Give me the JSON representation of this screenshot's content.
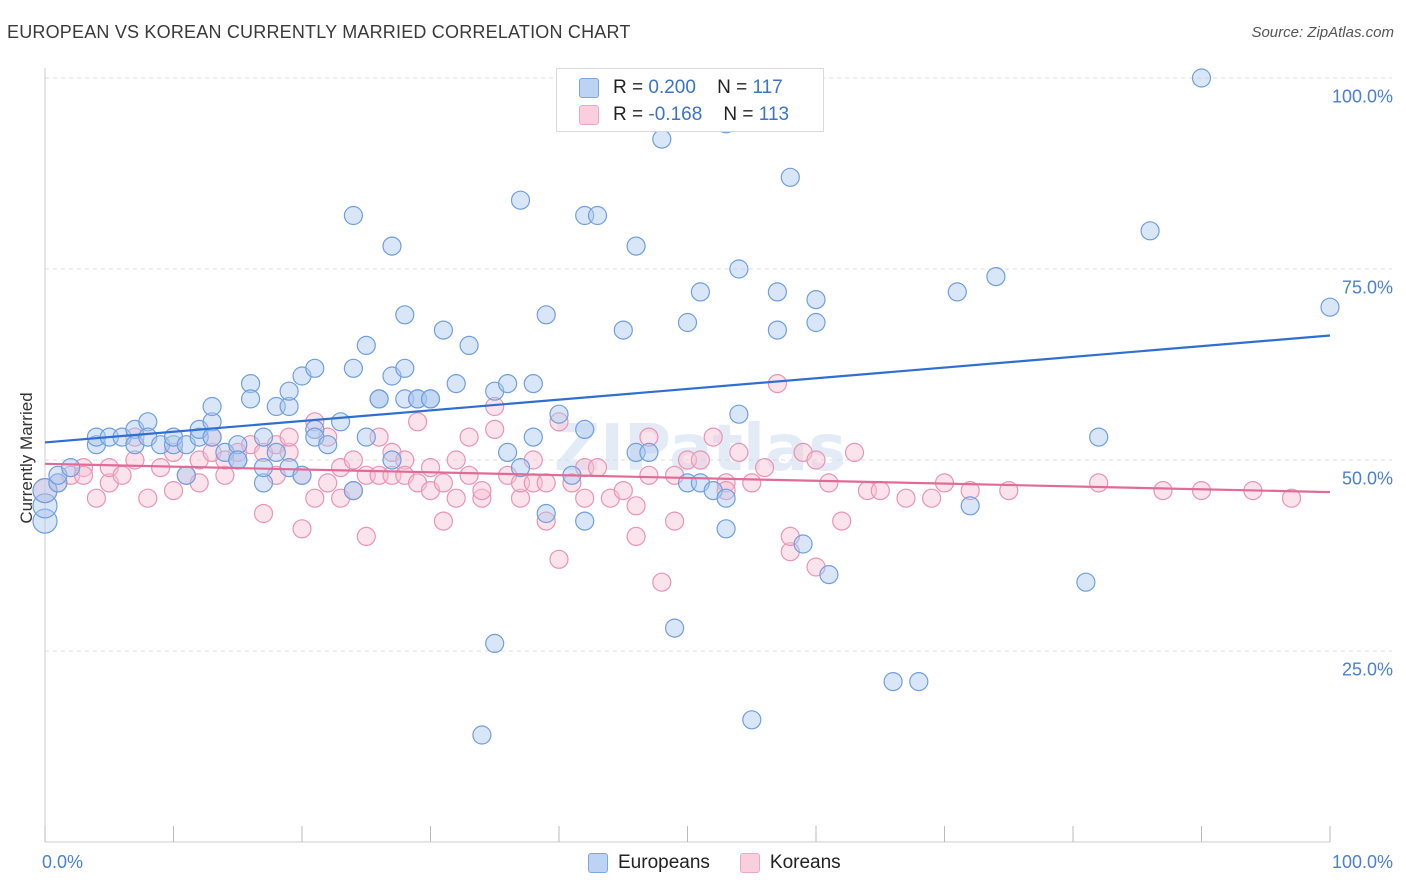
{
  "header": {
    "title": "EUROPEAN VS KOREAN CURRENTLY MARRIED CORRELATION CHART",
    "source": "Source: ZipAtlas.com"
  },
  "legend": {
    "europeans": {
      "r_label": "R =",
      "r_value": "0.200",
      "n_label": "N =",
      "n_value": "117"
    },
    "koreans": {
      "r_label": "R =",
      "r_value": "-0.168",
      "n_label": "N =",
      "n_value": "113"
    }
  },
  "watermark": "ZIPatlas",
  "chart_data": {
    "type": "scatter",
    "title": "EUROPEAN VS KOREAN CURRENTLY MARRIED CORRELATION CHART",
    "xlabel": "",
    "ylabel": "Currently Married",
    "xlim": [
      0,
      100
    ],
    "ylim": [
      0,
      100
    ],
    "x_tick_labels": [
      "0.0%",
      "100.0%"
    ],
    "y_tick_labels": [
      "100.0%",
      "75.0%",
      "50.0%",
      "25.0%"
    ],
    "y_tick_values": [
      100,
      75,
      50,
      25
    ],
    "grid": true,
    "legend_placement": "top-center",
    "colors": {
      "europeans": "#7aa7e6",
      "europeans_line": "#2f6fd0",
      "koreans": "#f2a7c0",
      "koreans_line": "#e06b96"
    },
    "series": [
      {
        "name": "Europeans",
        "trend": [
          [
            0,
            52.3
          ],
          [
            100,
            66.3
          ]
        ],
        "points": [
          [
            0,
            42
          ],
          [
            0,
            44
          ],
          [
            0,
            46
          ],
          [
            1,
            47
          ],
          [
            1,
            48
          ],
          [
            2,
            49
          ],
          [
            4,
            52
          ],
          [
            4,
            53
          ],
          [
            5,
            53
          ],
          [
            6,
            53
          ],
          [
            7,
            54
          ],
          [
            7,
            52
          ],
          [
            8,
            55
          ],
          [
            8,
            53
          ],
          [
            9,
            52
          ],
          [
            10,
            52
          ],
          [
            10,
            53
          ],
          [
            11,
            52
          ],
          [
            11,
            48
          ],
          [
            12,
            53
          ],
          [
            12,
            54
          ],
          [
            13,
            55
          ],
          [
            13,
            57
          ],
          [
            13,
            53
          ],
          [
            14,
            51
          ],
          [
            15,
            50
          ],
          [
            15,
            52
          ],
          [
            15,
            50
          ],
          [
            16,
            60
          ],
          [
            16,
            58
          ],
          [
            17,
            53
          ],
          [
            17,
            47
          ],
          [
            17,
            49
          ],
          [
            18,
            51
          ],
          [
            18,
            57
          ],
          [
            19,
            57
          ],
          [
            19,
            59
          ],
          [
            19,
            49
          ],
          [
            20,
            61
          ],
          [
            20,
            48
          ],
          [
            21,
            54
          ],
          [
            21,
            53
          ],
          [
            21,
            62
          ],
          [
            22,
            52
          ],
          [
            23,
            55
          ],
          [
            24,
            46
          ],
          [
            24,
            62
          ],
          [
            25,
            53
          ],
          [
            25,
            65
          ],
          [
            26,
            58
          ],
          [
            26,
            58
          ],
          [
            27,
            61
          ],
          [
            27,
            50
          ],
          [
            28,
            62
          ],
          [
            28,
            58
          ],
          [
            28,
            69
          ],
          [
            29,
            58
          ],
          [
            29,
            58
          ],
          [
            30,
            58
          ],
          [
            30,
            58
          ],
          [
            31,
            67
          ],
          [
            32,
            60
          ],
          [
            33,
            65
          ],
          [
            34,
            14
          ],
          [
            35,
            26
          ],
          [
            35,
            59
          ],
          [
            36,
            60
          ],
          [
            36,
            51
          ],
          [
            37,
            49
          ],
          [
            37,
            84
          ],
          [
            38,
            53
          ],
          [
            38,
            60
          ],
          [
            39,
            43
          ],
          [
            39,
            69
          ],
          [
            40,
            56
          ],
          [
            41,
            48
          ],
          [
            42,
            42
          ],
          [
            42,
            54
          ],
          [
            42,
            82
          ],
          [
            43,
            82
          ],
          [
            45,
            67
          ],
          [
            46,
            78
          ],
          [
            46,
            51
          ],
          [
            47,
            51
          ],
          [
            48,
            92
          ],
          [
            49,
            100
          ],
          [
            49,
            28
          ],
          [
            50,
            47
          ],
          [
            50,
            68
          ],
          [
            51,
            72
          ],
          [
            51,
            47
          ],
          [
            52,
            46
          ],
          [
            53,
            45
          ],
          [
            53,
            41
          ],
          [
            54,
            75
          ],
          [
            54,
            56
          ],
          [
            55,
            16
          ],
          [
            57,
            67
          ],
          [
            57,
            72
          ],
          [
            58,
            87
          ],
          [
            59,
            39
          ],
          [
            60,
            68
          ],
          [
            60,
            71
          ],
          [
            61,
            35
          ],
          [
            66,
            21
          ],
          [
            68,
            21
          ],
          [
            71,
            72
          ],
          [
            72,
            44
          ],
          [
            74,
            74
          ],
          [
            81,
            34
          ],
          [
            82,
            53
          ],
          [
            86,
            80
          ],
          [
            90,
            100
          ],
          [
            100,
            70
          ],
          [
            53,
            94
          ],
          [
            27,
            78
          ],
          [
            24,
            82
          ]
        ]
      },
      {
        "name": "Koreans",
        "trend": [
          [
            0,
            49.5
          ],
          [
            100,
            45.8
          ]
        ],
        "points": [
          [
            0,
            46
          ],
          [
            1,
            47
          ],
          [
            2,
            48
          ],
          [
            3,
            49
          ],
          [
            3,
            48
          ],
          [
            4,
            45
          ],
          [
            5,
            47
          ],
          [
            5,
            49
          ],
          [
            6,
            48
          ],
          [
            7,
            50
          ],
          [
            7,
            53
          ],
          [
            8,
            45
          ],
          [
            9,
            49
          ],
          [
            10,
            46
          ],
          [
            10,
            51
          ],
          [
            11,
            48
          ],
          [
            12,
            50
          ],
          [
            12,
            47
          ],
          [
            13,
            51
          ],
          [
            13,
            53
          ],
          [
            14,
            48
          ],
          [
            14,
            50
          ],
          [
            15,
            51
          ],
          [
            16,
            52
          ],
          [
            17,
            51
          ],
          [
            17,
            43
          ],
          [
            18,
            48
          ],
          [
            18,
            52
          ],
          [
            19,
            51
          ],
          [
            19,
            53
          ],
          [
            20,
            41
          ],
          [
            20,
            48
          ],
          [
            21,
            45
          ],
          [
            21,
            55
          ],
          [
            22,
            47
          ],
          [
            22,
            53
          ],
          [
            23,
            45
          ],
          [
            23,
            49
          ],
          [
            24,
            46
          ],
          [
            24,
            50
          ],
          [
            25,
            40
          ],
          [
            25,
            48
          ],
          [
            26,
            48
          ],
          [
            26,
            53
          ],
          [
            27,
            48
          ],
          [
            27,
            51
          ],
          [
            28,
            50
          ],
          [
            28,
            48
          ],
          [
            29,
            47
          ],
          [
            29,
            55
          ],
          [
            30,
            46
          ],
          [
            30,
            49
          ],
          [
            31,
            42
          ],
          [
            31,
            47
          ],
          [
            32,
            50
          ],
          [
            32,
            45
          ],
          [
            33,
            48
          ],
          [
            33,
            53
          ],
          [
            34,
            45
          ],
          [
            34,
            46
          ],
          [
            35,
            54
          ],
          [
            35,
            57
          ],
          [
            36,
            48
          ],
          [
            37,
            45
          ],
          [
            37,
            47
          ],
          [
            38,
            50
          ],
          [
            38,
            47
          ],
          [
            39,
            42
          ],
          [
            39,
            47
          ],
          [
            40,
            55
          ],
          [
            40,
            37
          ],
          [
            41,
            47
          ],
          [
            42,
            49
          ],
          [
            42,
            45
          ],
          [
            43,
            49
          ],
          [
            44,
            45
          ],
          [
            45,
            46
          ],
          [
            46,
            40
          ],
          [
            46,
            44
          ],
          [
            47,
            53
          ],
          [
            47,
            48
          ],
          [
            48,
            34
          ],
          [
            49,
            42
          ],
          [
            49,
            48
          ],
          [
            50,
            50
          ],
          [
            51,
            50
          ],
          [
            52,
            53
          ],
          [
            53,
            47
          ],
          [
            53,
            46
          ],
          [
            54,
            51
          ],
          [
            55,
            47
          ],
          [
            56,
            49
          ],
          [
            57,
            60
          ],
          [
            58,
            38
          ],
          [
            58,
            40
          ],
          [
            59,
            51
          ],
          [
            60,
            36
          ],
          [
            60,
            50
          ],
          [
            61,
            47
          ],
          [
            62,
            42
          ],
          [
            63,
            51
          ],
          [
            64,
            46
          ],
          [
            65,
            46
          ],
          [
            67,
            45
          ],
          [
            69,
            45
          ],
          [
            70,
            47
          ],
          [
            72,
            46
          ],
          [
            75,
            46
          ],
          [
            82,
            47
          ],
          [
            87,
            46
          ],
          [
            90,
            46
          ],
          [
            94,
            46
          ],
          [
            97,
            45
          ]
        ]
      }
    ]
  }
}
